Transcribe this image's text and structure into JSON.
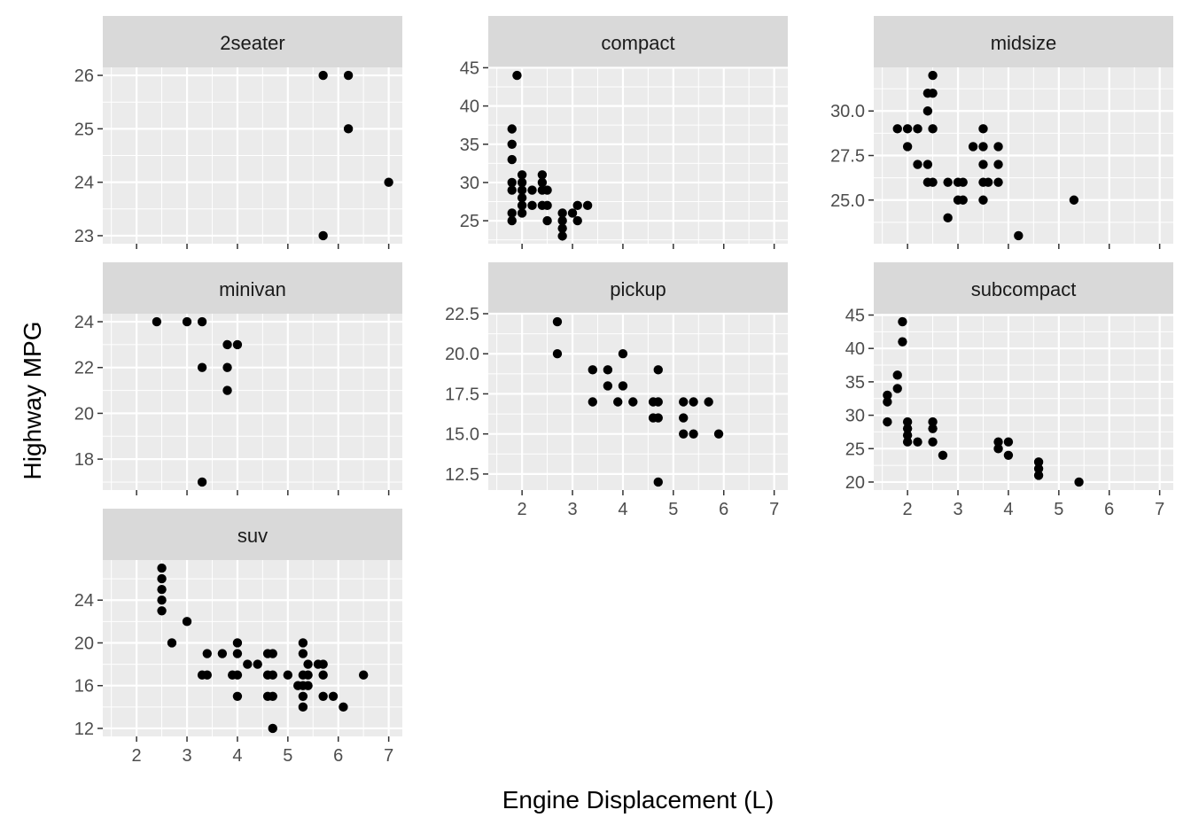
{
  "chart_data": {
    "type": "scatter",
    "facet": "class",
    "xlabel": "Engine Displacement (L)",
    "ylabel": "Highway MPG",
    "xlim": [
      1.33,
      7.27
    ],
    "xticks": [
      2,
      3,
      4,
      5,
      6,
      7
    ],
    "grid": true,
    "colors": {
      "panel": "#ebebeb",
      "strip": "#d9d9d9",
      "grid": "#ffffff",
      "point": "#000000"
    },
    "panels": [
      {
        "label": "2seater",
        "ylim": [
          22.85,
          26.15
        ],
        "yticks": [
          23,
          24,
          25,
          26
        ],
        "ytick_labels": [
          "23",
          "24",
          "25",
          "26"
        ],
        "points": [
          [
            5.7,
            26
          ],
          [
            6.2,
            26
          ],
          [
            6.2,
            25
          ],
          [
            7.0,
            24
          ],
          [
            5.7,
            23
          ]
        ]
      },
      {
        "label": "compact",
        "ylim": [
          22.0,
          45.05
        ],
        "yticks": [
          25,
          30,
          35,
          40,
          45
        ],
        "ytick_labels": [
          "25",
          "30",
          "35",
          "40",
          "45"
        ],
        "points": [
          [
            1.9,
            44
          ],
          [
            1.8,
            37
          ],
          [
            1.8,
            35
          ],
          [
            1.8,
            33
          ],
          [
            1.8,
            30
          ],
          [
            1.8,
            29
          ],
          [
            1.8,
            26
          ],
          [
            1.8,
            25
          ],
          [
            2.0,
            31
          ],
          [
            2.0,
            30
          ],
          [
            2.0,
            29
          ],
          [
            2.0,
            28
          ],
          [
            2.0,
            27
          ],
          [
            2.0,
            26
          ],
          [
            2.2,
            29
          ],
          [
            2.2,
            27
          ],
          [
            2.4,
            31
          ],
          [
            2.4,
            30
          ],
          [
            2.4,
            29
          ],
          [
            2.4,
            27
          ],
          [
            2.5,
            29
          ],
          [
            2.5,
            27
          ],
          [
            2.5,
            25
          ],
          [
            2.8,
            26
          ],
          [
            2.8,
            25
          ],
          [
            2.8,
            24
          ],
          [
            2.8,
            23
          ],
          [
            3.0,
            26
          ],
          [
            3.1,
            27
          ],
          [
            3.1,
            25
          ],
          [
            3.3,
            27
          ]
        ]
      },
      {
        "label": "midsize",
        "ylim": [
          22.55,
          32.45
        ],
        "yticks": [
          25,
          27.5,
          30
        ],
        "ytick_labels": [
          "25.0",
          "27.5",
          "30.0"
        ],
        "points": [
          [
            1.8,
            29
          ],
          [
            2.0,
            29
          ],
          [
            2.2,
            29
          ],
          [
            2.0,
            28
          ],
          [
            2.2,
            27
          ],
          [
            2.4,
            27
          ],
          [
            2.4,
            26
          ],
          [
            2.5,
            26
          ],
          [
            2.4,
            31
          ],
          [
            2.4,
            30
          ],
          [
            2.5,
            32
          ],
          [
            2.5,
            31
          ],
          [
            2.5,
            29
          ],
          [
            2.8,
            24
          ],
          [
            2.8,
            26
          ],
          [
            3.0,
            26
          ],
          [
            3.1,
            26
          ],
          [
            3.0,
            25
          ],
          [
            3.1,
            25
          ],
          [
            3.3,
            28
          ],
          [
            3.5,
            29
          ],
          [
            3.5,
            28
          ],
          [
            3.5,
            27
          ],
          [
            3.5,
            26
          ],
          [
            3.5,
            25
          ],
          [
            3.6,
            26
          ],
          [
            3.8,
            28
          ],
          [
            3.8,
            27
          ],
          [
            3.8,
            26
          ],
          [
            4.2,
            23
          ],
          [
            5.3,
            25
          ]
        ]
      },
      {
        "label": "minivan",
        "ylim": [
          16.65,
          24.35
        ],
        "yticks": [
          18,
          20,
          22,
          24
        ],
        "ytick_labels": [
          "18",
          "20",
          "22",
          "24"
        ],
        "points": [
          [
            2.4,
            24
          ],
          [
            3.0,
            24
          ],
          [
            3.3,
            24
          ],
          [
            3.3,
            22
          ],
          [
            3.3,
            17
          ],
          [
            3.8,
            23
          ],
          [
            4.0,
            23
          ],
          [
            3.8,
            22
          ],
          [
            3.8,
            21
          ]
        ]
      },
      {
        "label": "pickup",
        "ylim": [
          11.5,
          22.5
        ],
        "yticks": [
          12.5,
          15,
          17.5,
          20,
          22.5
        ],
        "ytick_labels": [
          "12.5",
          "15.0",
          "17.5",
          "20.0",
          "22.5"
        ],
        "points": [
          [
            2.7,
            22
          ],
          [
            2.7,
            20
          ],
          [
            3.4,
            19
          ],
          [
            3.4,
            17
          ],
          [
            3.7,
            19
          ],
          [
            3.7,
            18
          ],
          [
            3.9,
            17
          ],
          [
            4.0,
            20
          ],
          [
            4.0,
            18
          ],
          [
            4.2,
            17
          ],
          [
            4.7,
            19
          ],
          [
            4.7,
            17
          ],
          [
            4.6,
            17
          ],
          [
            4.6,
            16
          ],
          [
            4.7,
            16
          ],
          [
            4.7,
            12
          ],
          [
            5.2,
            17
          ],
          [
            5.2,
            16
          ],
          [
            5.2,
            15
          ],
          [
            5.4,
            17
          ],
          [
            5.4,
            15
          ],
          [
            5.7,
            17
          ],
          [
            5.9,
            15
          ]
        ]
      },
      {
        "label": "subcompact",
        "ylim": [
          18.8,
          45.2
        ],
        "yticks": [
          20,
          25,
          30,
          35,
          40,
          45
        ],
        "ytick_labels": [
          "20",
          "25",
          "30",
          "35",
          "40",
          "45"
        ],
        "points": [
          [
            1.6,
            33
          ],
          [
            1.6,
            32
          ],
          [
            1.6,
            29
          ],
          [
            1.8,
            36
          ],
          [
            1.8,
            34
          ],
          [
            1.9,
            44
          ],
          [
            1.9,
            41
          ],
          [
            2.0,
            29
          ],
          [
            2.0,
            28
          ],
          [
            2.0,
            27
          ],
          [
            2.0,
            26
          ],
          [
            2.2,
            26
          ],
          [
            2.5,
            29
          ],
          [
            2.5,
            28
          ],
          [
            2.5,
            26
          ],
          [
            2.7,
            24
          ],
          [
            3.8,
            26
          ],
          [
            3.8,
            25
          ],
          [
            4.0,
            26
          ],
          [
            4.0,
            24
          ],
          [
            4.6,
            23
          ],
          [
            4.6,
            22
          ],
          [
            4.6,
            21
          ],
          [
            5.4,
            20
          ]
        ]
      },
      {
        "label": "suv",
        "ylim": [
          11.25,
          27.75
        ],
        "yticks": [
          12,
          16,
          20,
          24
        ],
        "ytick_labels": [
          "12",
          "16",
          "20",
          "24"
        ],
        "points": [
          [
            2.5,
            27
          ],
          [
            2.5,
            26
          ],
          [
            2.5,
            25
          ],
          [
            2.5,
            24
          ],
          [
            2.5,
            23
          ],
          [
            2.7,
            20
          ],
          [
            3.0,
            22
          ],
          [
            3.3,
            17
          ],
          [
            3.4,
            17
          ],
          [
            3.4,
            19
          ],
          [
            3.7,
            19
          ],
          [
            3.9,
            17
          ],
          [
            4.0,
            20
          ],
          [
            4.0,
            19
          ],
          [
            4.0,
            17
          ],
          [
            4.0,
            15
          ],
          [
            4.2,
            18
          ],
          [
            4.4,
            18
          ],
          [
            4.6,
            19
          ],
          [
            4.6,
            17
          ],
          [
            4.6,
            15
          ],
          [
            4.7,
            19
          ],
          [
            4.7,
            17
          ],
          [
            4.7,
            15
          ],
          [
            4.7,
            12
          ],
          [
            5.0,
            17
          ],
          [
            5.2,
            16
          ],
          [
            5.3,
            20
          ],
          [
            5.3,
            19
          ],
          [
            5.3,
            17
          ],
          [
            5.3,
            16
          ],
          [
            5.3,
            15
          ],
          [
            5.3,
            14
          ],
          [
            5.4,
            18
          ],
          [
            5.4,
            17
          ],
          [
            5.4,
            16
          ],
          [
            5.6,
            18
          ],
          [
            5.7,
            18
          ],
          [
            5.7,
            17
          ],
          [
            5.7,
            15
          ],
          [
            5.9,
            15
          ],
          [
            6.1,
            14
          ],
          [
            6.5,
            17
          ]
        ]
      }
    ]
  }
}
